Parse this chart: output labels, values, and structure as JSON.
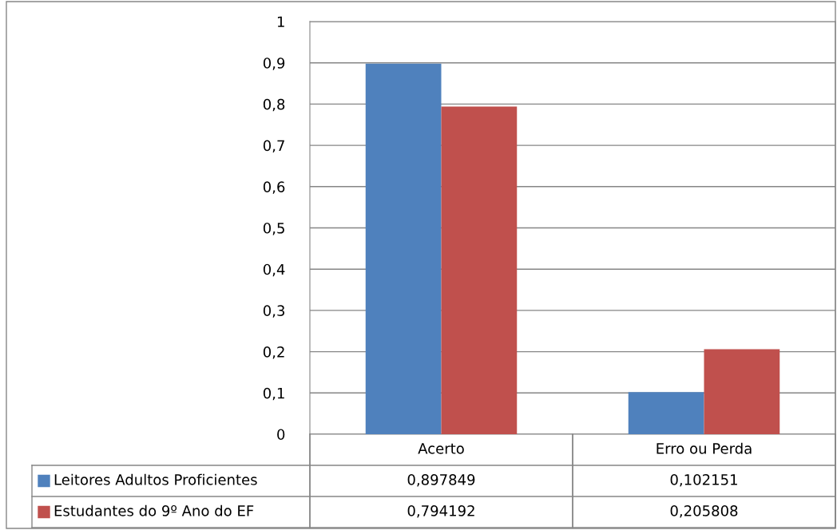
{
  "chart_data": {
    "type": "bar",
    "categories": [
      "Acerto",
      "Erro ou Perda"
    ],
    "series": [
      {
        "name": "Leitores Adultos Proficientes",
        "color": "#4f81bd",
        "values": [
          0.897849,
          0.102151
        ],
        "value_labels": [
          "0,897849",
          "0,102151"
        ]
      },
      {
        "name": "Estudantes do 9º Ano do EF",
        "color": "#c0504d",
        "values": [
          0.794192,
          0.205808
        ],
        "value_labels": [
          "0,794192",
          "0,205808"
        ]
      }
    ],
    "ylim": [
      0,
      1
    ],
    "yticks": [
      {
        "value": 0,
        "label": "0"
      },
      {
        "value": 0.1,
        "label": "0,1"
      },
      {
        "value": 0.2,
        "label": "0,2"
      },
      {
        "value": 0.3,
        "label": "0,3"
      },
      {
        "value": 0.4,
        "label": "0,4"
      },
      {
        "value": 0.5,
        "label": "0,5"
      },
      {
        "value": 0.6,
        "label": "0,6"
      },
      {
        "value": 0.7,
        "label": "0,7"
      },
      {
        "value": 0.8,
        "label": "0,8"
      },
      {
        "value": 0.9,
        "label": "0,9"
      },
      {
        "value": 1,
        "label": "1"
      }
    ],
    "grid": "y",
    "legend": "bottom"
  }
}
